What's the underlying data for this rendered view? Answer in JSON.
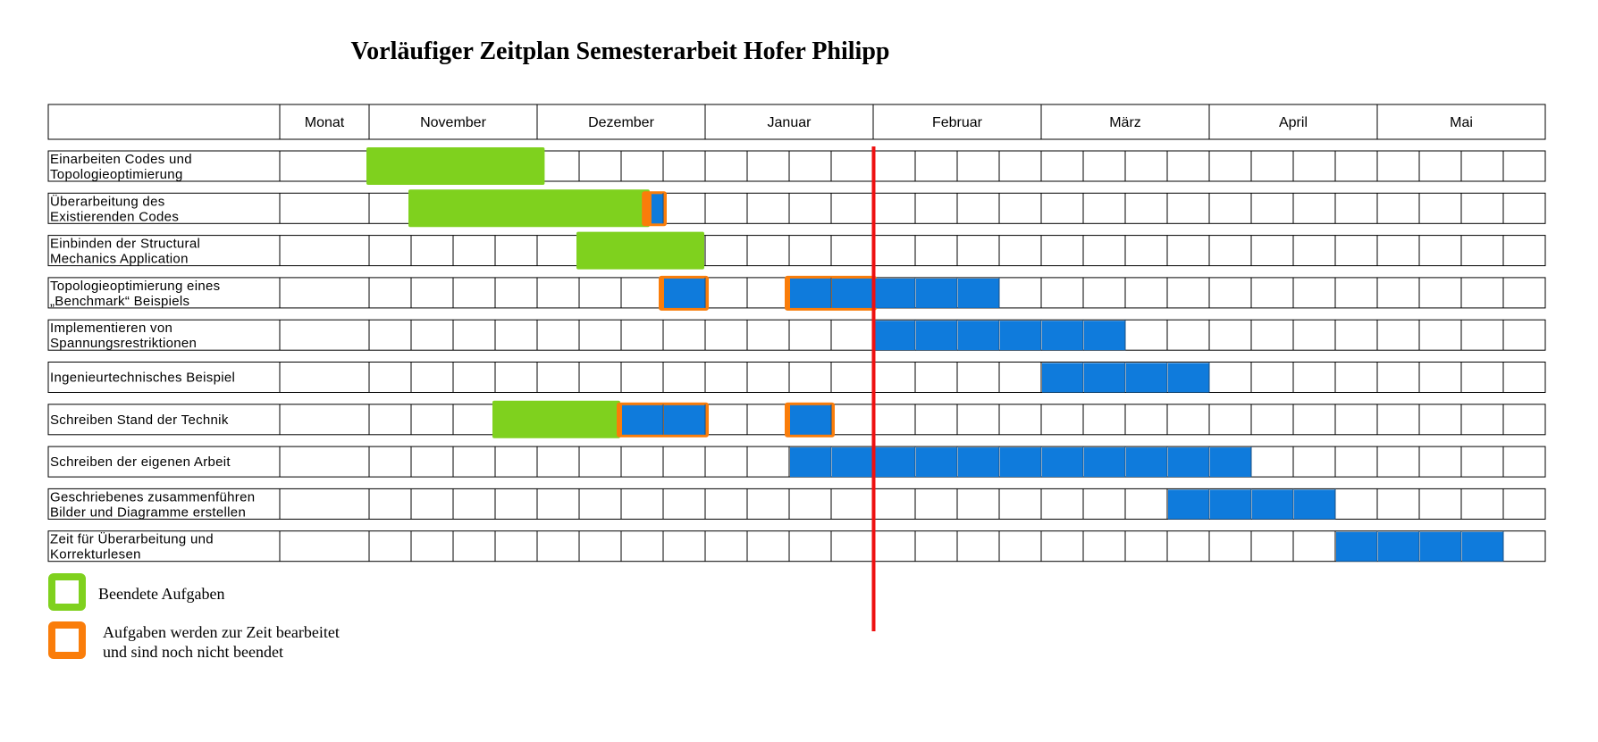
{
  "chart_data": {
    "type": "gantt",
    "title": "Vorläufiger Zeitplan Semesterarbeit Hofer Philipp",
    "header_label": "Monat",
    "months": [
      "November",
      "Dezember",
      "Januar",
      "Februar",
      "März",
      "April",
      "Mai"
    ],
    "weeks_per_month": 4,
    "current_week": 12.0,
    "colors": {
      "finished": "#7fd11e",
      "in_progress": "#fa7d0a",
      "planned": "#0f7bdc",
      "today_line": "#ee1111",
      "grid": "#000000"
    },
    "tasks": [
      {
        "label": [
          "Einarbeiten Codes und",
          "Topologieoptimierung"
        ],
        "planned": [],
        "finished": [
          [
            0,
            4.2
          ]
        ],
        "in_progress": []
      },
      {
        "label": [
          " Überarbeitung des",
          "Existierenden Codes"
        ],
        "planned": [
          [
            6.7,
            7
          ]
        ],
        "finished": [
          [
            1,
            6.7
          ]
        ],
        "in_progress": [
          [
            6.6,
            7
          ]
        ]
      },
      {
        "label": [
          "Einbinden der Structural",
          "Mechanics Application"
        ],
        "planned": [],
        "finished": [
          [
            5,
            8
          ]
        ],
        "in_progress": []
      },
      {
        "label": [
          "Topologieoptimierung eines",
          "„Benchmark“ Beispiels"
        ],
        "planned": [
          [
            7,
            8
          ],
          [
            10,
            15
          ]
        ],
        "finished": [],
        "in_progress": [
          [
            7,
            8
          ],
          [
            10,
            12
          ]
        ]
      },
      {
        "label": [
          "Implementieren von",
          "Spannungsrestriktionen"
        ],
        "planned": [
          [
            12,
            18
          ]
        ],
        "finished": [],
        "in_progress": []
      },
      {
        "label": [
          "Ingenieurtechnisches Beispiel"
        ],
        "planned": [
          [
            16,
            20
          ]
        ],
        "finished": [],
        "in_progress": []
      },
      {
        "label": [
          "Schreiben Stand der Technik"
        ],
        "planned": [
          [
            6,
            8
          ],
          [
            10,
            11
          ]
        ],
        "finished": [
          [
            3,
            6
          ]
        ],
        "in_progress": [
          [
            6,
            8
          ],
          [
            10,
            11
          ]
        ]
      },
      {
        "label": [
          "Schreiben der eigenen Arbeit"
        ],
        "planned": [
          [
            10,
            21
          ]
        ],
        "finished": [],
        "in_progress": []
      },
      {
        "label": [
          "Geschriebenes zusammenführen",
          "Bilder und Diagramme erstellen"
        ],
        "planned": [
          [
            19,
            23
          ]
        ],
        "finished": [],
        "in_progress": []
      },
      {
        "label": [
          "Zeit für Überarbeitung und",
          "Korrekturlesen"
        ],
        "planned": [
          [
            23,
            27
          ]
        ],
        "finished": [],
        "in_progress": []
      }
    ],
    "legend": [
      {
        "key": "finished",
        "lines": [
          "Beendete Aufgaben"
        ]
      },
      {
        "key": "in_progress",
        "lines": [
          "Aufgaben werden zur Zeit bearbeitet",
          "und sind noch nicht beendet"
        ]
      }
    ]
  }
}
